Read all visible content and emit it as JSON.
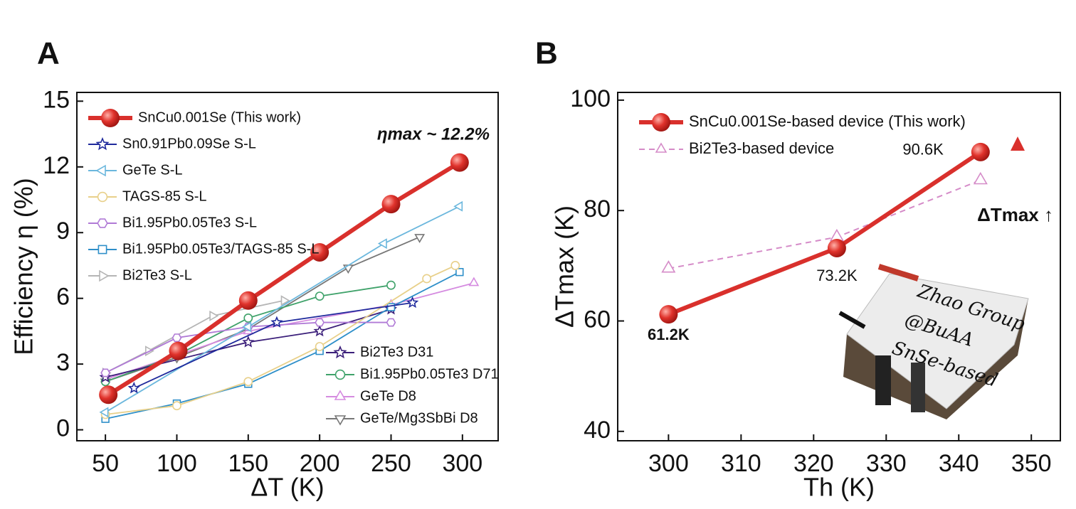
{
  "chart_data": [
    {
      "type": "line",
      "panel": "A",
      "title": null,
      "xlabel": "ΔT (K)",
      "ylabel": "Efficiency η (%)",
      "annotation": "ηmax ~ 12.2%",
      "xlim": [
        30,
        325
      ],
      "ylim": [
        -0.5,
        15.4
      ],
      "xticks": [
        50,
        100,
        150,
        200,
        250,
        300
      ],
      "yticks": [
        0,
        3,
        6,
        9,
        12,
        15
      ],
      "series": [
        {
          "name": "SnCu0.001Se (This work)",
          "color": "#d9302c",
          "marker": "circle",
          "legend": "upper left",
          "x": [
            52,
            101,
            150,
            200,
            250,
            298
          ],
          "values": [
            1.6,
            3.6,
            5.9,
            8.1,
            10.3,
            12.2
          ]
        },
        {
          "name": "Sn0.91Pb0.09Se S-L",
          "color": "#1f2a9c",
          "marker": "star",
          "legend": "upper left",
          "x": [
            70,
            170,
            265
          ],
          "values": [
            1.9,
            4.9,
            5.8
          ]
        },
        {
          "name": "GeTe S-L",
          "color": "#6bb7dd",
          "marker": "tri-left",
          "legend": "upper left",
          "x": [
            50,
            150,
            245,
            298
          ],
          "values": [
            0.8,
            4.7,
            8.5,
            10.2
          ]
        },
        {
          "name": "TAGS-85 S-L",
          "color": "#e8d08a",
          "marker": "circle-open",
          "legend": "upper left",
          "x": [
            50,
            100,
            150,
            200,
            275,
            295
          ],
          "values": [
            0.7,
            1.1,
            2.2,
            3.8,
            6.9,
            7.5
          ]
        },
        {
          "name": "Bi1.95Pb0.05Te3 S-L",
          "color": "#b07ad6",
          "marker": "hexagon",
          "legend": "upper left",
          "x": [
            50,
            100,
            150,
            200,
            250
          ],
          "values": [
            2.6,
            4.2,
            4.7,
            4.9,
            4.9
          ]
        },
        {
          "name": "Bi1.95Pb0.05Te3/TAGS-85 S-L",
          "color": "#2e8fc9",
          "marker": "square",
          "legend": "upper left",
          "x": [
            50,
            100,
            150,
            200,
            250,
            298
          ],
          "values": [
            0.5,
            1.2,
            2.1,
            3.6,
            5.6,
            7.2
          ]
        },
        {
          "name": "Bi2Te3 S-L",
          "color": "#b5b5b5",
          "marker": "tri-right",
          "legend": "upper left",
          "x": [
            50,
            80,
            125,
            175
          ],
          "values": [
            2.6,
            3.6,
            5.2,
            5.9
          ]
        },
        {
          "name": "Bi2Te3 D31",
          "color": "#3b1f7a",
          "marker": "star",
          "legend": "lower right",
          "x": [
            50,
            150,
            200,
            250
          ],
          "values": [
            2.4,
            4.0,
            4.5,
            5.5
          ]
        },
        {
          "name": "Bi1.95Pb0.05Te3 D71",
          "color": "#3fa26a",
          "marker": "circle-open",
          "legend": "lower right",
          "x": [
            50,
            100,
            150,
            200,
            250
          ],
          "values": [
            2.2,
            3.4,
            5.1,
            6.1,
            6.6
          ]
        },
        {
          "name": "GeTe D8",
          "color": "#d58be0",
          "marker": "tri-up",
          "legend": "lower right",
          "x": [
            50,
            150,
            250,
            308
          ],
          "values": [
            2.3,
            4.5,
            5.7,
            6.7
          ]
        },
        {
          "name": "GeTe/Mg3SbBi D8",
          "color": "#777777",
          "marker": "tri-down",
          "legend": "lower right",
          "x": [
            50,
            100,
            150,
            220,
            270
          ],
          "values": [
            2.2,
            3.3,
            4.6,
            7.4,
            8.8
          ]
        }
      ]
    },
    {
      "type": "line",
      "panel": "B",
      "title": null,
      "xlabel": "Th (K)",
      "ylabel": "ΔTmax (K)",
      "annotation": "ΔTmax ↑",
      "inset_text": [
        "Zhao Group",
        "@BuAA",
        "SnSe-based"
      ],
      "xlim": [
        293,
        354
      ],
      "ylim": [
        38.3,
        101.4
      ],
      "xticks": [
        300,
        310,
        320,
        330,
        340,
        350
      ],
      "yticks": [
        40,
        60,
        80,
        100
      ],
      "series": [
        {
          "name": "SnCu0.001Se-based device (This work)",
          "color": "#d9302c",
          "marker": "circle",
          "legend": "upper left",
          "x": [
            300,
            323.2,
            343
          ],
          "values": [
            61.2,
            73.2,
            90.6
          ],
          "value_labels": [
            "61.2K",
            "73.2K",
            "90.6K"
          ]
        },
        {
          "name": "Bi2Te3-based device",
          "color": "#d58bc8",
          "marker": "tri-up",
          "dash": true,
          "legend": "upper left",
          "x": [
            300,
            323.2,
            343
          ],
          "values": [
            69.5,
            75.2,
            85.5
          ]
        }
      ]
    }
  ]
}
